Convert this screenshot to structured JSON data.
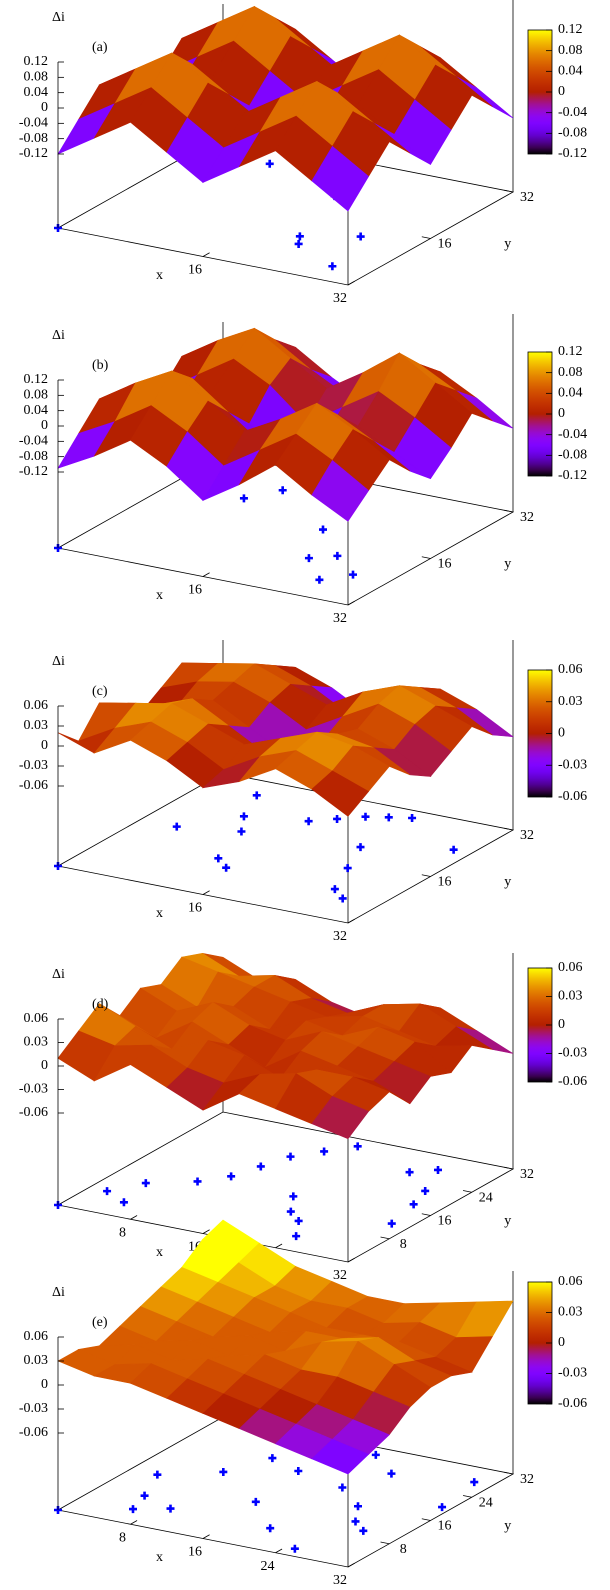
{
  "chart_data": [
    {
      "type": "surface",
      "label": "(a)",
      "zlabel": "Δi",
      "xlabel": "x",
      "ylabel": "y",
      "xlim": [
        0,
        32
      ],
      "ylim": [
        0,
        32
      ],
      "xticks": [
        16,
        32
      ],
      "yticks": [
        16,
        32
      ],
      "zlim": [
        -0.12,
        0.12
      ],
      "zticks": [
        0.12,
        0.08,
        0.04,
        0,
        -0.04,
        -0.08,
        -0.12
      ],
      "cblim": [
        -0.12,
        0.12
      ],
      "cbticks": [
        0.12,
        0.08,
        0.04,
        0,
        -0.04,
        -0.08,
        -0.12
      ],
      "colormap": "gnuplot",
      "surface": {
        "x": [
          0,
          4,
          8,
          12,
          16,
          20,
          24,
          28,
          32
        ],
        "y": [
          0,
          4,
          8,
          12,
          16,
          20,
          24,
          28,
          32
        ],
        "z": [
          [
            -0.12,
            -0.06,
            0,
            -0.06,
            -0.12,
            -0.06,
            0,
            -0.06,
            -0.12
          ],
          [
            -0.06,
            0,
            0.06,
            0,
            -0.06,
            0,
            0.06,
            0,
            -0.06
          ],
          [
            0,
            0.06,
            0.12,
            0.06,
            0,
            0.06,
            0.12,
            0.06,
            0
          ],
          [
            -0.06,
            0,
            0.06,
            0,
            -0.06,
            0,
            0.06,
            0,
            -0.06
          ],
          [
            -0.12,
            -0.06,
            0,
            -0.06,
            -0.12,
            -0.06,
            0,
            -0.06,
            -0.12
          ],
          [
            -0.06,
            0,
            0.06,
            0,
            -0.06,
            0,
            0.06,
            0,
            -0.06
          ],
          [
            0,
            0.06,
            0.12,
            0.06,
            0,
            0.06,
            0.12,
            0.06,
            0
          ],
          [
            -0.06,
            0,
            0.06,
            0,
            -0.06,
            0,
            0.06,
            0,
            -0.06
          ],
          [
            -0.12,
            -0.06,
            0,
            -0.06,
            -0.12,
            -0.06,
            0,
            -0.06,
            -0.12
          ]
        ]
      },
      "points": {
        "color": "#0000ff",
        "x": [
          0,
          8,
          12,
          18,
          21,
          26,
          28,
          22
        ],
        "y": [
          0,
          27,
          30,
          22,
          10,
          13,
          4,
          8
        ]
      }
    },
    {
      "type": "surface",
      "label": "(b)",
      "zlabel": "Δi",
      "xlabel": "x",
      "ylabel": "y",
      "xlim": [
        0,
        32
      ],
      "ylim": [
        0,
        32
      ],
      "xticks": [
        16,
        32
      ],
      "yticks": [
        16,
        32
      ],
      "zlim": [
        -0.12,
        0.12
      ],
      "zticks": [
        0.12,
        0.08,
        0.04,
        0,
        -0.04,
        -0.08,
        -0.12
      ],
      "cblim": [
        -0.12,
        0.12
      ],
      "cbticks": [
        0.12,
        0.08,
        0.04,
        0,
        -0.04,
        -0.08,
        -0.12
      ],
      "colormap": "gnuplot",
      "surface": {
        "x": [
          0,
          4,
          8,
          12,
          16,
          20,
          24,
          28,
          32
        ],
        "y": [
          0,
          4,
          8,
          12,
          16,
          20,
          24,
          28,
          32
        ],
        "z": [
          [
            -0.11,
            -0.05,
            0.01,
            -0.06,
            -0.12,
            -0.06,
            0,
            -0.05,
            -0.1
          ],
          [
            -0.06,
            0,
            0.07,
            0.01,
            -0.05,
            0,
            0.06,
            0,
            -0.05
          ],
          [
            0,
            0.06,
            0.12,
            0.07,
            0.01,
            0.06,
            0.11,
            0.05,
            0
          ],
          [
            -0.05,
            0.01,
            0.06,
            0,
            -0.06,
            0.01,
            0.05,
            -0.01,
            -0.06
          ],
          [
            -0.12,
            -0.06,
            0,
            -0.07,
            -0.13,
            -0.07,
            -0.01,
            -0.06,
            -0.11
          ],
          [
            -0.06,
            0,
            0.05,
            -0.01,
            -0.07,
            -0.01,
            0.05,
            0,
            -0.05
          ],
          [
            0.01,
            0.06,
            0.11,
            0.05,
            -0.01,
            0.05,
            0.12,
            0.06,
            0.01
          ],
          [
            -0.05,
            0.01,
            0.06,
            0,
            -0.06,
            0,
            0.06,
            0.01,
            -0.04
          ],
          [
            -0.1,
            -0.05,
            0,
            -0.06,
            -0.11,
            -0.06,
            0,
            -0.05,
            -0.1
          ]
        ]
      },
      "points": {
        "color": "#0000ff",
        "x": [
          0,
          8,
          10,
          12,
          14,
          22,
          24,
          26,
          28,
          19,
          16
        ],
        "y": [
          0,
          22,
          26,
          29,
          31,
          10,
          12,
          5,
          8,
          18,
          26
        ]
      }
    },
    {
      "type": "surface",
      "label": "(c)",
      "zlabel": "Δi",
      "xlabel": "x",
      "ylabel": "y",
      "xlim": [
        0,
        32
      ],
      "ylim": [
        0,
        32
      ],
      "xticks": [
        16,
        32
      ],
      "yticks": [
        16,
        32
      ],
      "zlim": [
        -0.06,
        0.06
      ],
      "zticks": [
        0.06,
        0.03,
        0,
        -0.03,
        -0.06
      ],
      "cblim": [
        -0.06,
        0.06
      ],
      "cbticks": [
        0.06,
        0.03,
        0,
        -0.03,
        -0.06
      ],
      "colormap": "gnuplot",
      "surface": {
        "x": [
          0,
          4,
          8,
          12,
          16,
          20,
          24,
          28,
          32
        ],
        "y": [
          0,
          4,
          8,
          12,
          16,
          20,
          24,
          28,
          32
        ],
        "z": [
          [
            0.02,
            -0.01,
            0.03,
            0.01,
            -0.02,
            0,
            0.02,
            -0.01,
            -0.04
          ],
          [
            0,
            0.02,
            0.04,
            0.02,
            0,
            0.02,
            0.03,
            0.01,
            -0.02
          ],
          [
            0.03,
            0.04,
            0.05,
            0.04,
            0.02,
            0.03,
            0.04,
            0.02,
            0
          ],
          [
            0.01,
            0.02,
            0.03,
            0.01,
            -0.01,
            0.01,
            0.02,
            0,
            -0.02
          ],
          [
            -0.02,
            -0.01,
            0.01,
            -0.02,
            -0.04,
            -0.02,
            0,
            -0.03,
            -0.05
          ],
          [
            0,
            0.02,
            0.03,
            0.01,
            -0.01,
            0.01,
            0.03,
            0.01,
            -0.02
          ],
          [
            0.03,
            0.04,
            0.05,
            0.03,
            0.02,
            0.04,
            0.05,
            0.03,
            0.01
          ],
          [
            0.01,
            0.02,
            0.04,
            0.02,
            0,
            0.02,
            0.03,
            0.01,
            -0.01
          ],
          [
            -0.02,
            0,
            0.02,
            -0.01,
            -0.03,
            -0.01,
            0.01,
            -0.02,
            -0.04
          ]
        ]
      },
      "points": {
        "color": "#0000ff",
        "x": [
          0,
          4,
          10,
          14,
          16,
          18,
          20,
          22,
          22,
          24,
          26,
          28,
          12,
          14,
          8,
          30,
          6
        ],
        "y": [
          0,
          16,
          18,
          24,
          26,
          28,
          29,
          30,
          20,
          14,
          8,
          6,
          10,
          8,
          22,
          24,
          28
        ]
      }
    },
    {
      "type": "surface",
      "label": "(d)",
      "zlabel": "Δi",
      "xlabel": "x",
      "ylabel": "y",
      "xlim": [
        0,
        32
      ],
      "ylim": [
        0,
        32
      ],
      "xticks": [
        8,
        16,
        24,
        32
      ],
      "yticks": [
        8,
        16,
        24,
        32
      ],
      "zlim": [
        -0.06,
        0.06
      ],
      "zticks": [
        0.06,
        0.03,
        0,
        -0.03,
        -0.06
      ],
      "cblim": [
        -0.06,
        0.06
      ],
      "cbticks": [
        0.06,
        0.03,
        0,
        -0.03,
        -0.06
      ],
      "colormap": "gnuplot",
      "surface": {
        "x": [
          0,
          4,
          8,
          12,
          16,
          20,
          24,
          28,
          32
        ],
        "y": [
          0,
          4,
          8,
          12,
          16,
          20,
          24,
          28,
          32
        ],
        "z": [
          [
            0.01,
            0.03,
            0.05,
            0.02,
            0.04,
            0.03,
            0.05,
            0.04,
            0.02
          ],
          [
            -0.01,
            0.02,
            0.03,
            0,
            0.02,
            0.01,
            0.04,
            0.02,
            0
          ],
          [
            0.02,
            0.03,
            0.01,
            0.03,
            0.04,
            0.02,
            0.03,
            0.03,
            0.01
          ],
          [
            0,
            0.01,
            0.03,
            0.01,
            0.02,
            0,
            0.02,
            0.01,
            -0.01
          ],
          [
            -0.02,
            0,
            0.02,
            -0.01,
            0.01,
            0.02,
            0.01,
            0,
            -0.02
          ],
          [
            0.01,
            0.02,
            0,
            0.02,
            0.03,
            0.01,
            0.02,
            0.02,
            0
          ],
          [
            0,
            0.03,
            0.02,
            0.01,
            0.02,
            0.03,
            0.01,
            0.03,
            0.01
          ],
          [
            -0.01,
            0.01,
            0.02,
            0,
            0.01,
            0.02,
            0,
            0.01,
            -0.01
          ],
          [
            -0.02,
            0,
            0.01,
            -0.02,
            0,
            -0.01,
            0.01,
            -0.01,
            -0.03
          ]
        ]
      },
      "points": {
        "color": "#0000ff",
        "x": [
          0,
          2,
          5,
          4,
          8,
          10,
          11,
          12,
          14,
          16,
          18,
          20,
          22,
          24,
          26,
          28,
          29,
          30,
          24,
          18
        ],
        "y": [
          0,
          6,
          4,
          10,
          13,
          16,
          20,
          24,
          27,
          30,
          14,
          10,
          8,
          26,
          28,
          22,
          18,
          12,
          4,
          2
        ]
      }
    },
    {
      "type": "surface",
      "label": "(e)",
      "zlabel": "Δi",
      "xlabel": "x",
      "ylabel": "y",
      "xlim": [
        0,
        32
      ],
      "ylim": [
        0,
        32
      ],
      "xticks": [
        8,
        16,
        24,
        32
      ],
      "yticks": [
        8,
        16,
        24,
        32
      ],
      "zlim": [
        -0.06,
        0.06
      ],
      "zticks": [
        0.06,
        0.03,
        0,
        -0.03,
        -0.06
      ],
      "cblim": [
        -0.06,
        0.06
      ],
      "cbticks": [
        0.06,
        0.03,
        0,
        -0.03,
        -0.06
      ],
      "colormap": "gnuplot",
      "surface": {
        "x": [
          0,
          4,
          8,
          12,
          16,
          20,
          24,
          28,
          32
        ],
        "y": [
          0,
          4,
          8,
          12,
          16,
          20,
          24,
          28,
          32
        ],
        "z": [
          [
            0.03,
            0.03,
            0.02,
            0.03,
            0.04,
            0.05,
            0.06,
            0.08,
            0.09
          ],
          [
            0.02,
            0.02,
            0.03,
            0.02,
            0.03,
            0.04,
            0.05,
            0.06,
            0.07
          ],
          [
            0.02,
            0.03,
            0.02,
            0.03,
            0.02,
            0.03,
            0.04,
            0.04,
            0.05
          ],
          [
            0.01,
            0.02,
            0.03,
            0.02,
            0.03,
            0.02,
            0.03,
            0.03,
            0.04
          ],
          [
            0,
            0.01,
            0.02,
            0.03,
            0.02,
            0.03,
            0.02,
            0.03,
            0.03
          ],
          [
            -0.01,
            0,
            0.01,
            0.02,
            0.04,
            0.03,
            0.02,
            0.02,
            0.03
          ],
          [
            -0.02,
            -0.01,
            0,
            0.02,
            0.05,
            0.04,
            0.02,
            0.03,
            0.04
          ],
          [
            -0.03,
            -0.02,
            -0.01,
            0.01,
            0.03,
            0.02,
            0.01,
            0.02,
            0.05
          ],
          [
            -0.04,
            -0.03,
            -0.02,
            0,
            0.01,
            0.01,
            0,
            0.03,
            0.06
          ]
        ]
      },
      "points": {
        "color": "#0000ff",
        "x": [
          0,
          3,
          5,
          8,
          10,
          12,
          13,
          14,
          16,
          18,
          20,
          22,
          24,
          26,
          28,
          30,
          31,
          9,
          6,
          20,
          25,
          15
        ],
        "y": [
          0,
          14,
          8,
          18,
          24,
          28,
          31,
          22,
          26,
          30,
          20,
          26,
          16,
          12,
          10,
          28,
          20,
          6,
          4,
          6,
          2,
          12
        ]
      }
    }
  ]
}
